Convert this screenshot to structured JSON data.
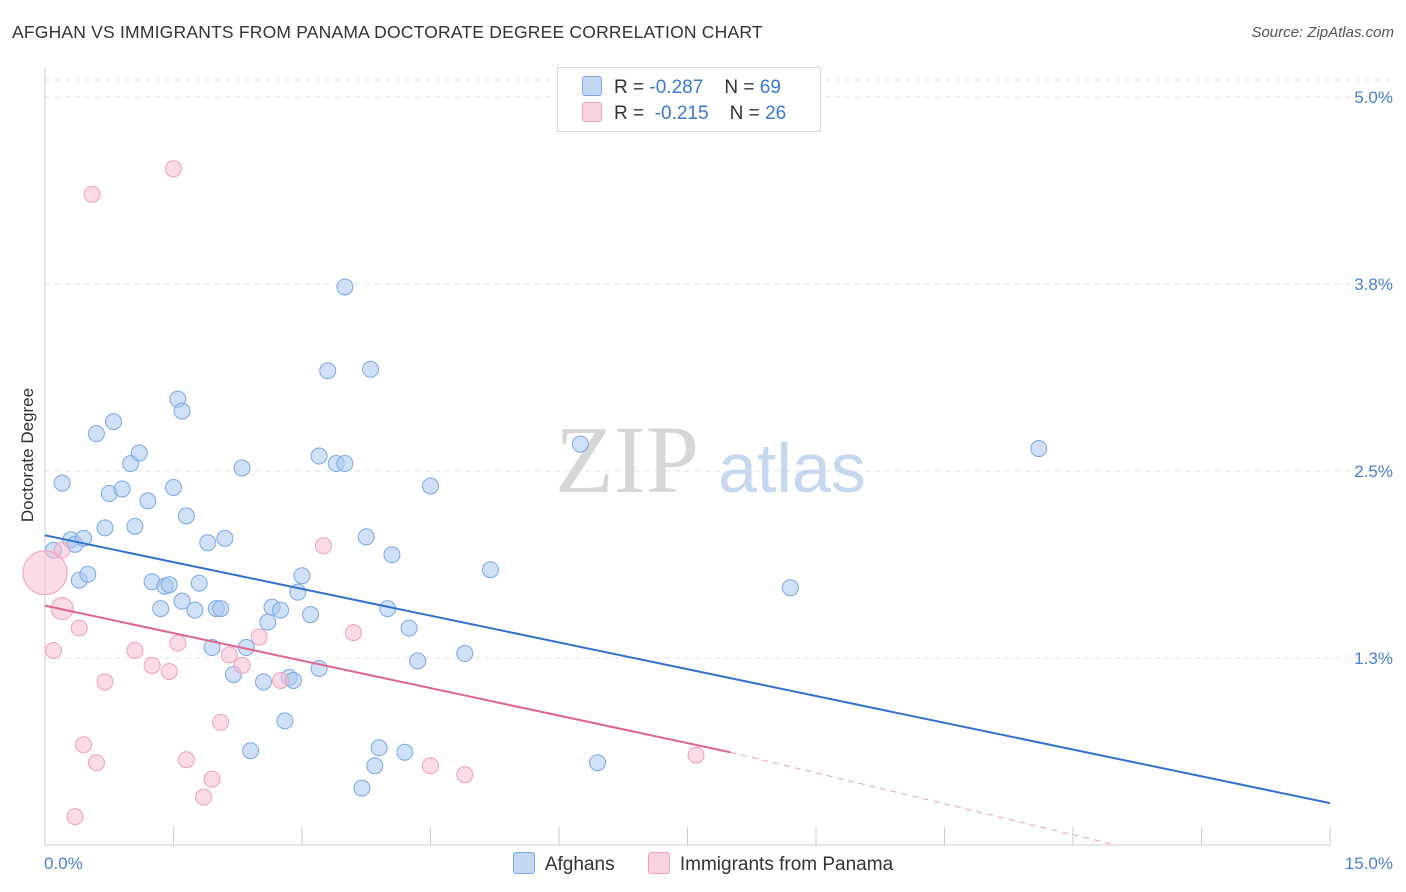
{
  "title": "AFGHAN VS IMMIGRANTS FROM PANAMA DOCTORATE DEGREE CORRELATION CHART",
  "source": "Source: ZipAtlas.com",
  "watermark": {
    "zip": "ZIP",
    "atlas": "atlas"
  },
  "legend": {
    "series1": {
      "r_label": "R =",
      "r_value": "-0.287",
      "n_label": "N =",
      "n_value": "69"
    },
    "series2": {
      "r_label": "R =",
      "r_value": "-0.215",
      "n_label": "N =",
      "n_value": "26"
    }
  },
  "chart_data": {
    "type": "scatter",
    "title": "AFGHAN VS IMMIGRANTS FROM PANAMA DOCTORATE DEGREE CORRELATION CHART",
    "xlabel": "",
    "ylabel": "Doctorate Degree",
    "xlim": [
      0,
      15
    ],
    "ylim": [
      0,
      5
    ],
    "x_tick_labels": [
      "0.0%",
      "15.0%"
    ],
    "y_ticks": [
      1.25,
      2.5,
      3.75,
      5.0
    ],
    "y_tick_labels": [
      "1.3%",
      "2.5%",
      "3.8%",
      "5.0%"
    ],
    "grid": true,
    "colors": {
      "afghans": "#7aa8e8",
      "panama": "#f2a0bb",
      "afghans_line": "#2f72d2",
      "panama_line": "#e0648e"
    },
    "series": [
      {
        "name": "Afghans",
        "x": [
          0.1,
          0.2,
          0.3,
          0.35,
          0.4,
          0.45,
          0.5,
          0.6,
          0.7,
          0.75,
          0.8,
          0.9,
          1.0,
          1.05,
          1.1,
          1.2,
          1.25,
          1.35,
          1.4,
          1.45,
          1.5,
          1.55,
          1.6,
          1.6,
          1.65,
          1.75,
          1.8,
          1.9,
          1.95,
          2.0,
          2.05,
          2.1,
          2.2,
          2.3,
          2.35,
          2.4,
          2.55,
          2.6,
          2.65,
          2.75,
          2.8,
          2.85,
          2.9,
          2.95,
          3.0,
          3.1,
          3.2,
          3.2,
          3.3,
          3.4,
          3.5,
          3.5,
          3.7,
          3.75,
          3.8,
          3.85,
          3.9,
          4.0,
          4.05,
          4.2,
          4.25,
          4.35,
          4.5,
          4.9,
          5.2,
          6.25,
          6.45,
          8.7,
          11.6
        ],
        "y": [
          1.97,
          2.42,
          2.04,
          2.01,
          1.77,
          2.05,
          1.81,
          2.75,
          2.12,
          2.35,
          2.83,
          2.38,
          2.55,
          2.13,
          2.62,
          2.3,
          1.76,
          1.58,
          1.73,
          1.74,
          2.39,
          2.98,
          2.9,
          1.63,
          2.2,
          1.57,
          1.75,
          2.02,
          1.32,
          1.58,
          1.58,
          2.05,
          1.14,
          2.52,
          1.32,
          0.63,
          1.09,
          1.49,
          1.59,
          1.57,
          0.83,
          1.12,
          1.1,
          1.69,
          1.8,
          1.54,
          2.6,
          1.18,
          3.17,
          2.55,
          2.55,
          3.73,
          0.38,
          2.06,
          3.18,
          0.53,
          0.65,
          1.58,
          1.94,
          0.62,
          1.45,
          1.23,
          2.4,
          1.28,
          1.84,
          2.68,
          0.55,
          1.72,
          2.65
        ]
      },
      {
        "name": "Immigrants from Panama",
        "x": [
          0.1,
          0.2,
          0.35,
          0.4,
          0.45,
          0.55,
          0.6,
          0.7,
          1.05,
          1.25,
          1.45,
          1.5,
          1.55,
          1.65,
          1.85,
          1.95,
          2.05,
          2.15,
          2.3,
          2.5,
          2.75,
          3.25,
          3.6,
          4.5,
          4.9,
          7.6
        ],
        "y": [
          1.3,
          1.97,
          0.19,
          1.45,
          0.67,
          4.35,
          0.55,
          1.09,
          1.3,
          1.2,
          1.16,
          4.52,
          1.35,
          0.57,
          0.32,
          0.44,
          0.82,
          1.27,
          1.2,
          1.39,
          1.1,
          2.0,
          1.42,
          0.53,
          0.47,
          0.6
        ]
      }
    ],
    "trendlines": [
      {
        "name": "Afghans",
        "x": [
          0.0,
          15.0
        ],
        "y": [
          2.07,
          0.28
        ]
      },
      {
        "name": "Immigrants from Panama",
        "x": [
          0.0,
          8.0
        ],
        "y": [
          1.6,
          0.62
        ],
        "dashed_extension_to": [
          12.5,
          0.0
        ]
      }
    ]
  },
  "bottom_legend": {
    "series1": "Afghans",
    "series2": "Immigrants from Panama"
  }
}
